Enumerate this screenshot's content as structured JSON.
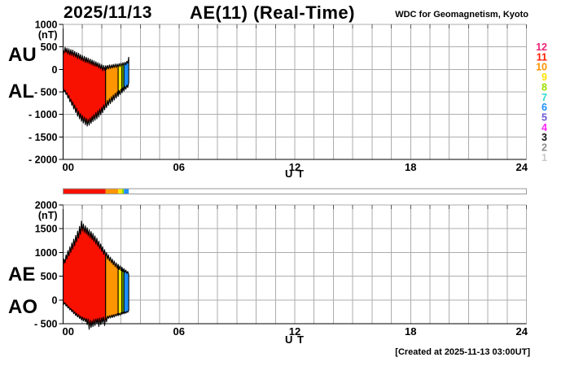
{
  "header": {
    "date": "2025/11/13",
    "title": "AE(11) (Real-Time)",
    "source": "WDC for Geomagnetism, Kyoto"
  },
  "footer": {
    "created": "[Created at 2025-11-13 03:00UT]"
  },
  "colors": {
    "grid": "#ADADAD",
    "axis": "#000000",
    "band_outline": "#000000",
    "bar_border": "#999999",
    "bar_background": "#FFFFFF"
  },
  "legend": {
    "description": "number of available stations",
    "items": [
      {
        "label": "12",
        "color": "#EE2577"
      },
      {
        "label": "11",
        "color": "#FF1E00"
      },
      {
        "label": "10",
        "color": "#FF9500"
      },
      {
        "label": "9",
        "color": "#FFE100"
      },
      {
        "label": "8",
        "color": "#9ADF00"
      },
      {
        "label": "7",
        "color": "#2FD8CE"
      },
      {
        "label": "6",
        "color": "#1E8FFF"
      },
      {
        "label": "5",
        "color": "#6A58D6"
      },
      {
        "label": "4",
        "color": "#FF25FF"
      },
      {
        "label": "3",
        "color": "#111111"
      },
      {
        "label": "2",
        "color": "#8F8F8F"
      },
      {
        "label": "1",
        "color": "#CACACA"
      }
    ]
  },
  "availability_bar": {
    "segments": [
      {
        "from": 0.0,
        "to": 2.2,
        "stations": 11,
        "color": "#F81000"
      },
      {
        "from": 2.2,
        "to": 2.85,
        "stations": 10,
        "color": "#FF9500"
      },
      {
        "from": 2.85,
        "to": 3.05,
        "stations": 9,
        "color": "#FFE800"
      },
      {
        "from": 3.05,
        "to": 3.15,
        "stations": 8,
        "color": "#8FDC00"
      },
      {
        "from": 3.15,
        "to": 3.4,
        "stations": 6,
        "color": "#1E8FFF"
      }
    ]
  },
  "chart_data": [
    {
      "type": "area",
      "name": "AU-AL",
      "left_labels": [
        "AU",
        "AL"
      ],
      "xlabel": "U T",
      "y_unit": "(nT)",
      "x_range": [
        0,
        24
      ],
      "x_grid_step": 1,
      "x_ticks": [
        {
          "v": 0,
          "label": "00"
        },
        {
          "v": 6,
          "label": "06"
        },
        {
          "v": 12,
          "label": "12"
        },
        {
          "v": 18,
          "label": "18"
        },
        {
          "v": 24,
          "label": "24"
        }
      ],
      "y_range": [
        -2000,
        1000
      ],
      "y_ticks": [
        {
          "v": 1000,
          "label": "1000"
        },
        {
          "v": 500,
          "label": "500"
        },
        {
          "v": 0,
          "label": "0"
        },
        {
          "v": -500,
          "label": "- 500"
        },
        {
          "v": -1000,
          "label": "- 1000"
        },
        {
          "v": -1500,
          "label": "- 1500"
        },
        {
          "v": -2000,
          "label": "- 2000"
        }
      ],
      "x_start": 0,
      "x_step": 0.05,
      "series": [
        {
          "name": "AU",
          "values": [
            430,
            360,
            490,
            380,
            470,
            340,
            460,
            320,
            440,
            310,
            430,
            290,
            400,
            270,
            380,
            240,
            360,
            230,
            330,
            200,
            310,
            180,
            290,
            160,
            270,
            150,
            250,
            130,
            230,
            110,
            210,
            90,
            190,
            70,
            170,
            60,
            150,
            30,
            130,
            10,
            110,
            -30,
            90,
            -20,
            80,
            0,
            90,
            10,
            100,
            20,
            100,
            30,
            110,
            40,
            120,
            40,
            120,
            50,
            130,
            60,
            140,
            70,
            150,
            80,
            160,
            100,
            180,
            140,
            270
          ]
        },
        {
          "name": "AL",
          "values": [
            -420,
            -500,
            -460,
            -560,
            -520,
            -640,
            -580,
            -720,
            -660,
            -800,
            -720,
            -880,
            -790,
            -960,
            -860,
            -1040,
            -930,
            -1100,
            -980,
            -1150,
            -1020,
            -1190,
            -1060,
            -1230,
            -1090,
            -1260,
            -1110,
            -1240,
            -1080,
            -1200,
            -1040,
            -1160,
            -1000,
            -1130,
            -960,
            -1100,
            -920,
            -1060,
            -880,
            -1010,
            -840,
            -960,
            -790,
            -900,
            -740,
            -850,
            -690,
            -800,
            -650,
            -760,
            -610,
            -720,
            -570,
            -680,
            -530,
            -640,
            -500,
            -600,
            -470,
            -560,
            -440,
            -520,
            -410,
            -480,
            -380,
            -440,
            -350,
            -400,
            -290
          ]
        }
      ],
      "station_segments": [
        {
          "from": 0.0,
          "to": 2.2,
          "stations": 11,
          "color": "#F81000"
        },
        {
          "from": 2.2,
          "to": 2.85,
          "stations": 10,
          "color": "#FF9500"
        },
        {
          "from": 2.85,
          "to": 3.05,
          "stations": 9,
          "color": "#FFE800"
        },
        {
          "from": 3.05,
          "to": 3.15,
          "stations": 8,
          "color": "#8FDC00"
        },
        {
          "from": 3.15,
          "to": 3.4,
          "stations": 6,
          "color": "#1E8FFF"
        }
      ]
    },
    {
      "type": "area",
      "name": "AE-AO",
      "left_labels": [
        "AE",
        "AO"
      ],
      "xlabel": "U T",
      "y_unit": "(nT)",
      "x_range": [
        0,
        24
      ],
      "x_grid_step": 1,
      "x_ticks": [
        {
          "v": 0,
          "label": "00"
        },
        {
          "v": 6,
          "label": "06"
        },
        {
          "v": 12,
          "label": "12"
        },
        {
          "v": 18,
          "label": "18"
        },
        {
          "v": 24,
          "label": "24"
        }
      ],
      "y_range": [
        -500,
        2000
      ],
      "y_ticks": [
        {
          "v": 2000,
          "label": "2000"
        },
        {
          "v": 1500,
          "label": "1500"
        },
        {
          "v": 1000,
          "label": "1000"
        },
        {
          "v": 500,
          "label": "500"
        },
        {
          "v": 0,
          "label": "0"
        },
        {
          "v": -500,
          "label": "- 500"
        }
      ],
      "x_start": 0,
      "x_step": 0.05,
      "series": [
        {
          "name": "AE",
          "values": [
            720,
            860,
            780,
            950,
            860,
            1040,
            930,
            1120,
            1000,
            1200,
            1070,
            1280,
            1140,
            1360,
            1220,
            1450,
            1300,
            1550,
            1380,
            1660,
            1450,
            1600,
            1420,
            1560,
            1390,
            1520,
            1350,
            1480,
            1310,
            1440,
            1270,
            1400,
            1230,
            1350,
            1180,
            1300,
            1130,
            1240,
            1080,
            1180,
            1020,
            1120,
            960,
            1060,
            910,
            1000,
            860,
            950,
            820,
            900,
            780,
            860,
            740,
            820,
            700,
            780,
            670,
            750,
            640,
            720,
            620,
            690,
            600,
            660,
            580,
            630,
            560,
            600,
            530
          ]
        },
        {
          "name": "AO",
          "values": [
            -30,
            -90,
            -60,
            -130,
            -100,
            -170,
            -140,
            -210,
            -180,
            -250,
            -210,
            -290,
            -250,
            -330,
            -280,
            -360,
            -310,
            -390,
            -340,
            -420,
            -360,
            -440,
            -380,
            -460,
            -390,
            -520,
            -400,
            -620,
            -430,
            -580,
            -440,
            -560,
            -410,
            -540,
            -400,
            -500,
            -390,
            -560,
            -380,
            -520,
            -370,
            -480,
            -360,
            -540,
            -350,
            -460,
            -340,
            -390,
            -330,
            -380,
            -320,
            -370,
            -310,
            -360,
            -300,
            -340,
            -290,
            -330,
            -280,
            -320,
            -270,
            -300,
            -260,
            -290,
            -250,
            -280,
            -240,
            -260,
            -220
          ]
        }
      ],
      "station_segments": [
        {
          "from": 0.0,
          "to": 2.2,
          "stations": 11,
          "color": "#F81000"
        },
        {
          "from": 2.2,
          "to": 2.85,
          "stations": 10,
          "color": "#FF9500"
        },
        {
          "from": 2.85,
          "to": 3.05,
          "stations": 9,
          "color": "#FFE800"
        },
        {
          "from": 3.05,
          "to": 3.15,
          "stations": 8,
          "color": "#8FDC00"
        },
        {
          "from": 3.15,
          "to": 3.4,
          "stations": 6,
          "color": "#1E8FFF"
        }
      ]
    }
  ]
}
